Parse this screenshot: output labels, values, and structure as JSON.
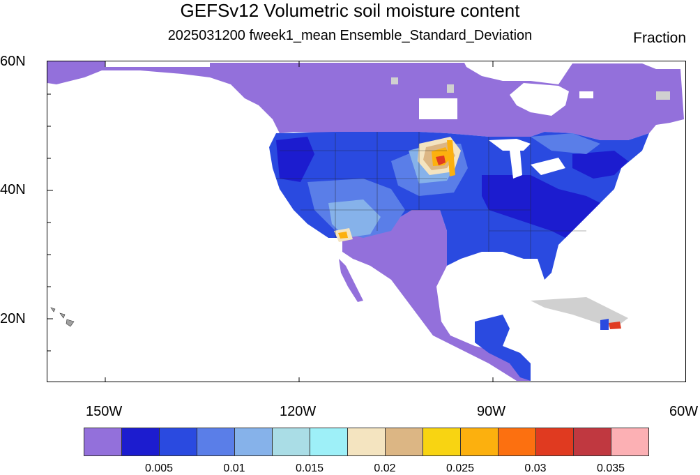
{
  "header": {
    "title": "GEFSv12 Volumetric soil moisture content",
    "subtitle": "2025031200 fweek1_mean Ensemble_Standard_Deviation",
    "units": "Fraction"
  },
  "map": {
    "lat_labels": [
      "60N",
      "40N",
      "20N"
    ],
    "lon_labels": [
      "150W",
      "120W",
      "90W",
      "60W"
    ]
  },
  "colorbar": {
    "colors": [
      "#9370db",
      "#1c1ccf",
      "#2a4ae0",
      "#5a7ee8",
      "#86b2ea",
      "#aadde6",
      "#9ef0f8",
      "#f4e4c0",
      "#dcb684",
      "#f8d412",
      "#fcb00e",
      "#fc7010",
      "#e03a20",
      "#c03840",
      "#fcb0b4"
    ],
    "labels": [
      "0.005",
      "0.01",
      "0.015",
      "0.02",
      "0.025",
      "0.03",
      "0.035"
    ]
  }
}
